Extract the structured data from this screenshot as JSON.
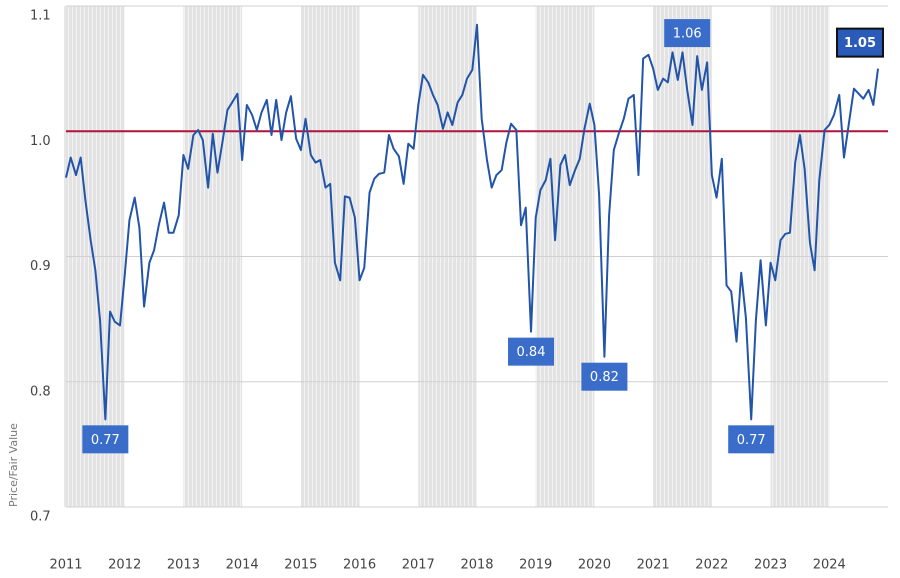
{
  "chart_data": {
    "type": "line",
    "y_label": "Price/Fair Value",
    "x": [
      2011.0,
      2011.08,
      2011.17,
      2011.25,
      2011.33,
      2011.42,
      2011.5,
      2011.58,
      2011.67,
      2011.75,
      2011.83,
      2011.92,
      2012.0,
      2012.08,
      2012.17,
      2012.25,
      2012.33,
      2012.42,
      2012.5,
      2012.58,
      2012.67,
      2012.75,
      2012.83,
      2012.92,
      2013.0,
      2013.08,
      2013.17,
      2013.25,
      2013.33,
      2013.42,
      2013.5,
      2013.58,
      2013.67,
      2013.75,
      2013.83,
      2013.92,
      2014.0,
      2014.08,
      2014.17,
      2014.25,
      2014.33,
      2014.42,
      2014.5,
      2014.58,
      2014.67,
      2014.75,
      2014.83,
      2014.92,
      2015.0,
      2015.08,
      2015.17,
      2015.25,
      2015.33,
      2015.42,
      2015.5,
      2015.58,
      2015.67,
      2015.75,
      2015.83,
      2015.92,
      2016.0,
      2016.08,
      2016.17,
      2016.25,
      2016.33,
      2016.42,
      2016.5,
      2016.58,
      2016.67,
      2016.75,
      2016.83,
      2016.92,
      2017.0,
      2017.08,
      2017.17,
      2017.25,
      2017.33,
      2017.42,
      2017.5,
      2017.58,
      2017.67,
      2017.75,
      2017.83,
      2017.92,
      2018.0,
      2018.08,
      2018.17,
      2018.25,
      2018.33,
      2018.42,
      2018.5,
      2018.58,
      2018.67,
      2018.75,
      2018.83,
      2018.92,
      2019.0,
      2019.08,
      2019.17,
      2019.25,
      2019.33,
      2019.42,
      2019.5,
      2019.58,
      2019.67,
      2019.75,
      2019.83,
      2019.92,
      2020.0,
      2020.08,
      2020.17,
      2020.25,
      2020.33,
      2020.42,
      2020.5,
      2020.58,
      2020.67,
      2020.75,
      2020.83,
      2020.92,
      2021.0,
      2021.08,
      2021.17,
      2021.25,
      2021.33,
      2021.42,
      2021.5,
      2021.58,
      2021.67,
      2021.75,
      2021.83,
      2021.92,
      2022.0,
      2022.08,
      2022.17,
      2022.25,
      2022.33,
      2022.42,
      2022.5,
      2022.58,
      2022.67,
      2022.75,
      2022.83,
      2022.92,
      2023.0,
      2023.08,
      2023.17,
      2023.25,
      2023.33,
      2023.42,
      2023.5,
      2023.58,
      2023.67,
      2023.75,
      2023.83,
      2023.92,
      2024.0,
      2024.08,
      2024.17,
      2024.25,
      2024.33,
      2024.42,
      2024.5,
      2024.58,
      2024.67,
      2024.75,
      2024.83
    ],
    "series": [
      {
        "color": "#2255aa",
        "values": [
          0.963,
          0.979,
          0.965,
          0.979,
          0.945,
          0.913,
          0.889,
          0.849,
          0.77,
          0.856,
          0.848,
          0.845,
          0.885,
          0.929,
          0.947,
          0.923,
          0.86,
          0.895,
          0.905,
          0.925,
          0.943,
          0.919,
          0.919,
          0.933,
          0.981,
          0.97,
          0.997,
          1.001,
          0.993,
          0.955,
          0.998,
          0.967,
          0.993,
          1.017,
          1.023,
          1.03,
          0.977,
          1.021,
          1.013,
          1.001,
          1.015,
          1.025,
          0.997,
          1.025,
          0.993,
          1.015,
          1.028,
          0.994,
          0.985,
          1.01,
          0.981,
          0.975,
          0.977,
          0.955,
          0.958,
          0.895,
          0.881,
          0.948,
          0.947,
          0.931,
          0.881,
          0.891,
          0.951,
          0.962,
          0.966,
          0.967,
          0.997,
          0.986,
          0.98,
          0.958,
          0.99,
          0.986,
          1.021,
          1.045,
          1.039,
          1.029,
          1.021,
          1.002,
          1.015,
          1.005,
          1.023,
          1.029,
          1.042,
          1.049,
          1.085,
          1.01,
          0.977,
          0.955,
          0.965,
          0.969,
          0.991,
          1.006,
          1.001,
          0.925,
          0.939,
          0.84,
          0.931,
          0.953,
          0.961,
          0.978,
          0.913,
          0.973,
          0.981,
          0.957,
          0.969,
          0.978,
          1.002,
          1.022,
          1.005,
          0.949,
          0.82,
          0.933,
          0.985,
          0.999,
          1.01,
          1.026,
          1.029,
          0.965,
          1.058,
          1.061,
          1.05,
          1.033,
          1.042,
          1.039,
          1.063,
          1.041,
          1.063,
          1.033,
          1.005,
          1.06,
          1.033,
          1.055,
          0.965,
          0.947,
          0.978,
          0.877,
          0.872,
          0.832,
          0.887,
          0.851,
          0.77,
          0.849,
          0.897,
          0.845,
          0.895,
          0.881,
          0.913,
          0.918,
          0.919,
          0.975,
          0.997,
          0.97,
          0.911,
          0.889,
          0.961,
          1.001,
          1.005,
          1.013,
          1.029,
          0.979,
          1.005,
          1.034,
          1.03,
          1.026,
          1.033,
          1.021,
          1.05
        ]
      }
    ],
    "annotations": [
      {
        "x": 2011.67,
        "y": 0.77
      },
      {
        "x": 2018.92,
        "y": 0.84
      },
      {
        "x": 2020.17,
        "y": 0.82
      },
      {
        "x": 2021.58,
        "y": 1.06
      },
      {
        "x": 2022.67,
        "y": 0.77
      },
      {
        "x": 2024.83,
        "y": 1.05
      }
    ],
    "reference_line": {
      "value": 1,
      "color": "#b0123a"
    },
    "xlim": [
      2011,
      2025
    ],
    "xticks": [
      2011,
      2012,
      2013,
      2014,
      2015,
      2016,
      2017,
      2018,
      2019,
      2020,
      2021,
      2022,
      2023,
      2024
    ],
    "ylim": [
      0.7,
      1.1
    ],
    "yticks": [
      0.7,
      0.8,
      0.9,
      {
        "value": 1,
        "label": "1.0"
      },
      1.1
    ],
    "grid": true
  }
}
